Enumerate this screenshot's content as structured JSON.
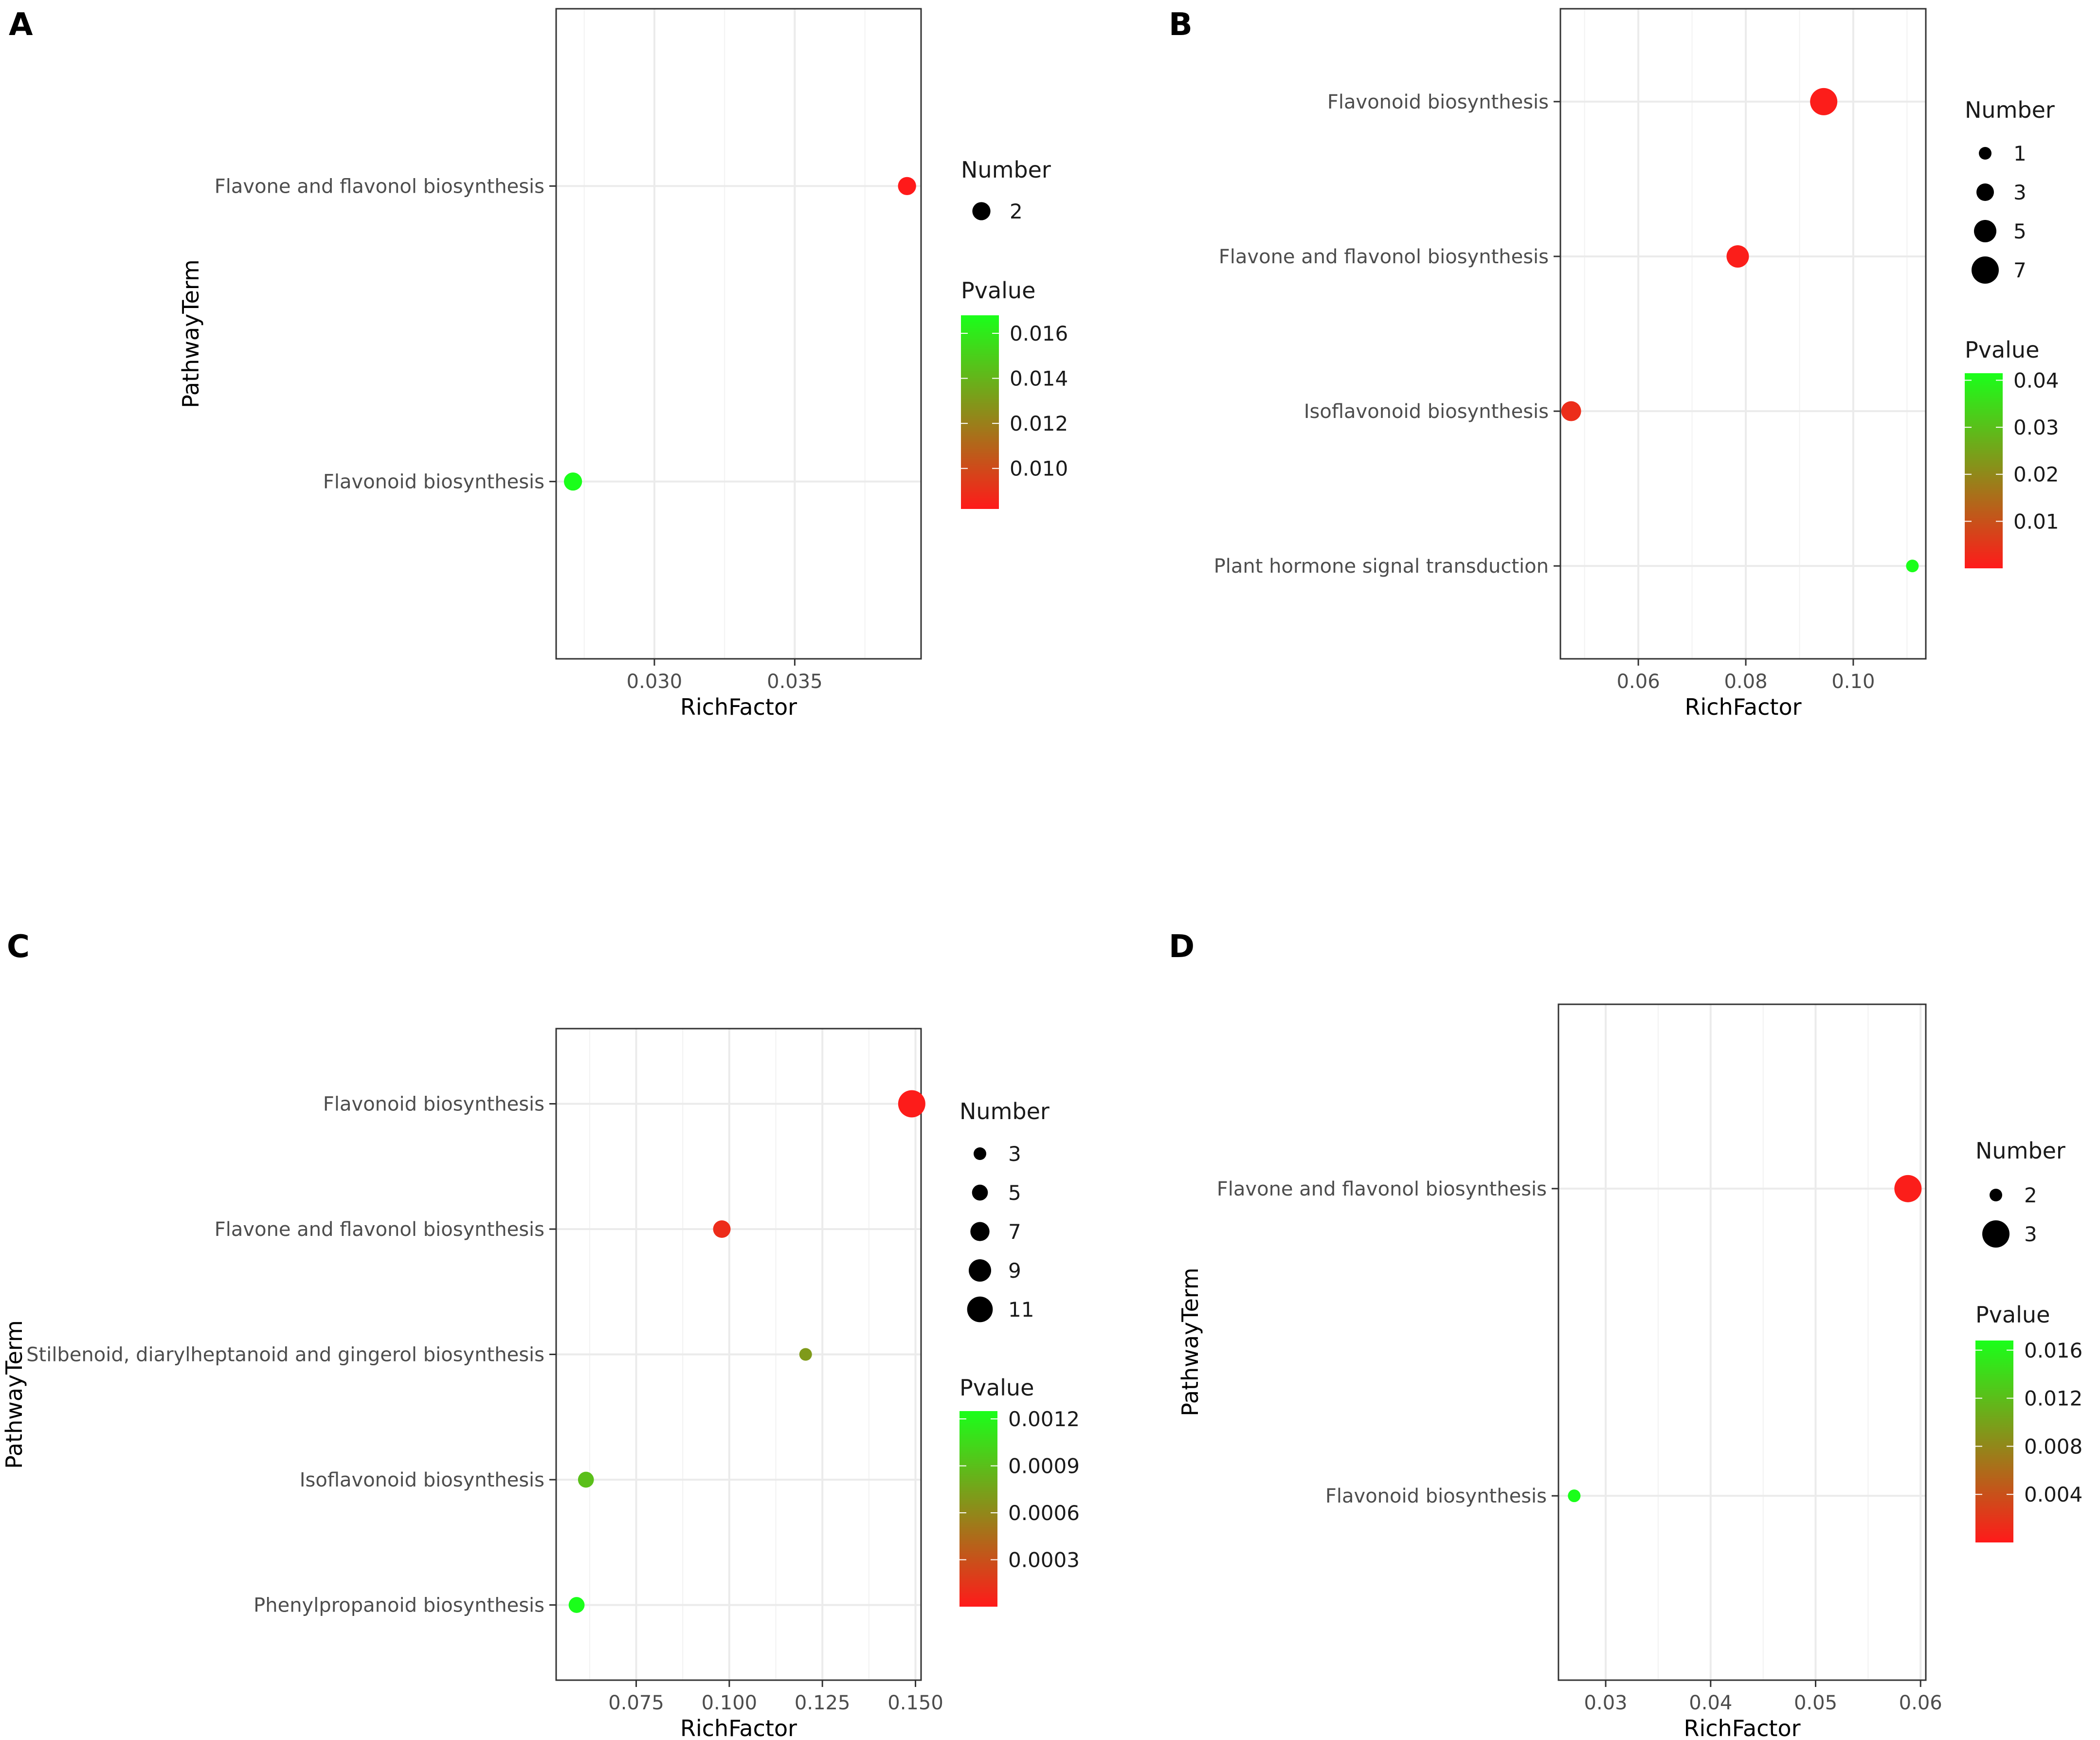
{
  "colors": {
    "low_p": "#ff1a1a",
    "high_p": "#1aff1a",
    "grid": "#ebebeb",
    "panel_border": "#333333",
    "text": "#4d4d4d",
    "legend_text": "#1a1a1a",
    "dot_legend": "#000000"
  },
  "chart_data": [
    {
      "panel": "A",
      "type": "scatter",
      "xlabel": "RichFactor",
      "ylabel": "PathwayTerm",
      "xlim": [
        0.0265,
        0.0395
      ],
      "xticks": [
        0.03,
        0.035
      ],
      "xtick_labels": [
        "0.030",
        "0.035"
      ],
      "categories": [
        "Flavone and flavonol biosynthesis",
        "Flavonoid biosynthesis"
      ],
      "points": [
        {
          "term": "Flavone and flavonol biosynthesis",
          "richfactor": 0.039,
          "number": 2,
          "pvalue": 0.0082
        },
        {
          "term": "Flavonoid biosynthesis",
          "richfactor": 0.0271,
          "number": 2,
          "pvalue": 0.0168
        }
      ],
      "size_legend": {
        "title": "Number",
        "values": [
          2
        ],
        "labels": [
          "2"
        ]
      },
      "color_legend": {
        "title": "Pvalue",
        "range": [
          0.0082,
          0.0168
        ],
        "ticks": [
          0.016,
          0.014,
          0.012,
          0.01
        ],
        "labels": [
          "0.016",
          "0.014",
          "0.012",
          "0.010"
        ]
      },
      "size_range": [
        2,
        2
      ]
    },
    {
      "panel": "B",
      "type": "scatter",
      "xlabel": "RichFactor",
      "ylabel": "",
      "xlim": [
        0.0455,
        0.1135
      ],
      "xticks": [
        0.06,
        0.08,
        0.1
      ],
      "xtick_labels": [
        "0.06",
        "0.08",
        "0.10"
      ],
      "categories": [
        "Flavonoid biosynthesis",
        "Flavone and flavonol biosynthesis",
        "Isoflavonoid biosynthesis",
        "Plant hormone signal transduction"
      ],
      "points": [
        {
          "term": "Flavonoid biosynthesis",
          "richfactor": 0.0945,
          "number": 7,
          "pvalue": 0.0005
        },
        {
          "term": "Flavone and flavonol biosynthesis",
          "richfactor": 0.0785,
          "number": 5,
          "pvalue": 0.0008
        },
        {
          "term": "Isoflavonoid biosynthesis",
          "richfactor": 0.0475,
          "number": 4,
          "pvalue": 0.0035
        },
        {
          "term": "Plant hormone signal transduction",
          "richfactor": 0.111,
          "number": 1,
          "pvalue": 0.0415
        }
      ],
      "size_legend": {
        "title": "Number",
        "values": [
          1,
          3,
          5,
          7
        ],
        "labels": [
          "1",
          "3",
          "5",
          "7"
        ]
      },
      "color_legend": {
        "title": "Pvalue",
        "range": [
          0.0,
          0.0415
        ],
        "ticks": [
          0.04,
          0.03,
          0.02,
          0.01
        ],
        "labels": [
          "0.04",
          "0.03",
          "0.02",
          "0.01"
        ]
      },
      "size_range": [
        1,
        7
      ]
    },
    {
      "panel": "C",
      "type": "scatter",
      "xlabel": "RichFactor",
      "ylabel": "PathwayTerm",
      "xlim": [
        0.0535,
        0.1515
      ],
      "xticks": [
        0.075,
        0.1,
        0.125,
        0.15
      ],
      "xtick_labels": [
        "0.075",
        "0.100",
        "0.125",
        "0.150"
      ],
      "categories": [
        "Flavonoid biosynthesis",
        "Flavone and flavonol biosynthesis",
        "Stilbenoid, diarylheptanoid and gingerol biosynthesis",
        "Isoflavonoid biosynthesis",
        "Phenylpropanoid biosynthesis"
      ],
      "points": [
        {
          "term": "Flavonoid biosynthesis",
          "richfactor": 0.149,
          "number": 12,
          "pvalue": 1e-05
        },
        {
          "term": "Flavone and flavonol biosynthesis",
          "richfactor": 0.098,
          "number": 6,
          "pvalue": 0.0001
        },
        {
          "term": "Stilbenoid, diarylheptanoid and gingerol biosynthesis",
          "richfactor": 0.1205,
          "number": 3,
          "pvalue": 0.0007
        },
        {
          "term": "Isoflavonoid biosynthesis",
          "richfactor": 0.0615,
          "number": 5,
          "pvalue": 0.0009
        },
        {
          "term": "Phenylpropanoid biosynthesis",
          "richfactor": 0.059,
          "number": 5,
          "pvalue": 0.00125
        }
      ],
      "size_legend": {
        "title": "Number",
        "values": [
          3,
          5,
          7,
          9,
          11
        ],
        "labels": [
          "3",
          "5",
          "7",
          "9",
          "11"
        ]
      },
      "color_legend": {
        "title": "Pvalue",
        "range": [
          0.0,
          0.00125
        ],
        "ticks": [
          0.0012,
          0.0009,
          0.0006,
          0.0003
        ],
        "labels": [
          "0.0012",
          "0.0009",
          "0.0006",
          "0.0003"
        ]
      },
      "size_range": [
        3,
        12
      ]
    },
    {
      "panel": "D",
      "type": "scatter",
      "xlabel": "RichFactor",
      "ylabel": "PathwayTerm",
      "xlim": [
        0.0255,
        0.0605
      ],
      "xticks": [
        0.03,
        0.04,
        0.05,
        0.06
      ],
      "xtick_labels": [
        "0.03",
        "0.04",
        "0.05",
        "0.06"
      ],
      "categories": [
        "Flavone and flavonol biosynthesis",
        "Flavonoid biosynthesis"
      ],
      "points": [
        {
          "term": "Flavone and flavonol biosynthesis",
          "richfactor": 0.0588,
          "number": 3,
          "pvalue": 0.0003
        },
        {
          "term": "Flavonoid biosynthesis",
          "richfactor": 0.027,
          "number": 2,
          "pvalue": 0.0168
        }
      ],
      "size_legend": {
        "title": "Number",
        "values": [
          2,
          3
        ],
        "labels": [
          "2",
          "3"
        ]
      },
      "color_legend": {
        "title": "Pvalue",
        "range": [
          0.0,
          0.0168
        ],
        "ticks": [
          0.016,
          0.012,
          0.008,
          0.004
        ],
        "labels": [
          "0.016",
          "0.012",
          "0.008",
          "0.004"
        ]
      },
      "size_range": [
        2,
        3
      ]
    }
  ]
}
